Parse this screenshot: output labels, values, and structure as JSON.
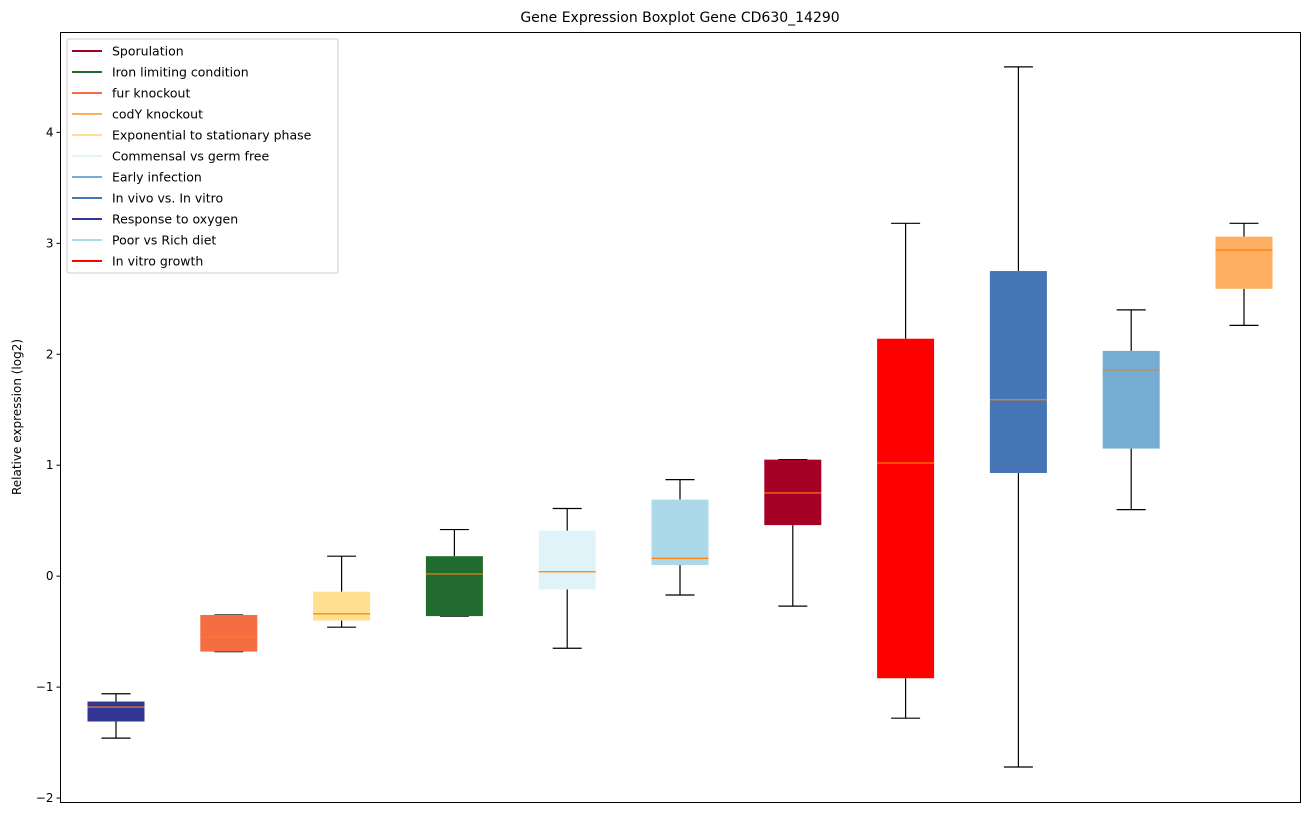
{
  "chart_data": {
    "type": "boxplot",
    "title": "Gene Expression Boxplot Gene CD630_14290",
    "xlabel": "",
    "ylabel": "Relative expression (log2)",
    "ylim": [
      -2.04,
      4.9
    ],
    "yticks": [
      -2,
      -1,
      0,
      1,
      2,
      3,
      4
    ],
    "ytick_labels": [
      "−2",
      "−1",
      "0",
      "1",
      "2",
      "3",
      "4"
    ],
    "grid": false,
    "legend_position": "top-left",
    "median_color": "#ff7f0e",
    "legend": [
      {
        "label": "Sporulation",
        "color": "#a50026"
      },
      {
        "label": "Iron limiting condition",
        "color": "#226b2e"
      },
      {
        "label": "fur knockout",
        "color": "#f46d43"
      },
      {
        "label": "codY knockout",
        "color": "#fdae61"
      },
      {
        "label": "Exponential to stationary phase",
        "color": "#fee090"
      },
      {
        "label": "Commensal vs germ free",
        "color": "#e0f3f8"
      },
      {
        "label": "Early infection",
        "color": "#74add1"
      },
      {
        "label": "In vivo vs. In vitro",
        "color": "#4575b4"
      },
      {
        "label": "Response to oxygen",
        "color": "#313695"
      },
      {
        "label": "Poor vs Rich diet",
        "color": "#abd9e9"
      },
      {
        "label": "In vitro growth",
        "color": "#ff0000"
      }
    ],
    "series": [
      {
        "name": "Response to oxygen",
        "color": "#313695",
        "whisker_low": -1.46,
        "q1": -1.31,
        "median": -1.18,
        "q3": -1.13,
        "whisker_high": -1.06
      },
      {
        "name": "fur knockout",
        "color": "#f46d43",
        "whisker_low": -0.68,
        "q1": -0.68,
        "median": -0.55,
        "q3": -0.35,
        "whisker_high": -0.35
      },
      {
        "name": "Exponential to stationary phase",
        "color": "#fee090",
        "whisker_low": -0.46,
        "q1": -0.4,
        "median": -0.34,
        "q3": -0.14,
        "whisker_high": 0.18
      },
      {
        "name": "Iron limiting condition",
        "color": "#226b2e",
        "whisker_low": -0.36,
        "q1": -0.36,
        "median": 0.02,
        "q3": 0.18,
        "whisker_high": 0.42
      },
      {
        "name": "Commensal vs germ free",
        "color": "#e0f3f8",
        "whisker_low": -0.65,
        "q1": -0.12,
        "median": 0.04,
        "q3": 0.41,
        "whisker_high": 0.61
      },
      {
        "name": "Poor vs Rich diet",
        "color": "#abd9e9",
        "whisker_low": -0.17,
        "q1": 0.1,
        "median": 0.16,
        "q3": 0.69,
        "whisker_high": 0.87
      },
      {
        "name": "Sporulation",
        "color": "#a50026",
        "whisker_low": -0.27,
        "q1": 0.46,
        "median": 0.75,
        "q3": 1.05,
        "whisker_high": 1.05
      },
      {
        "name": "In vitro growth",
        "color": "#ff0000",
        "whisker_low": -1.28,
        "q1": -0.92,
        "median": 1.02,
        "q3": 2.14,
        "whisker_high": 3.18
      },
      {
        "name": "In vivo vs. In vitro",
        "color": "#4575b4",
        "whisker_low": -1.72,
        "q1": 0.93,
        "median": 1.59,
        "q3": 2.75,
        "whisker_high": 4.59
      },
      {
        "name": "Early infection",
        "color": "#74add1",
        "whisker_low": 0.6,
        "q1": 1.15,
        "median": 1.86,
        "q3": 2.03,
        "whisker_high": 2.4
      },
      {
        "name": "codY knockout",
        "color": "#fdae61",
        "whisker_low": 2.26,
        "q1": 2.59,
        "median": 2.94,
        "q3": 3.06,
        "whisker_high": 3.18
      }
    ]
  }
}
